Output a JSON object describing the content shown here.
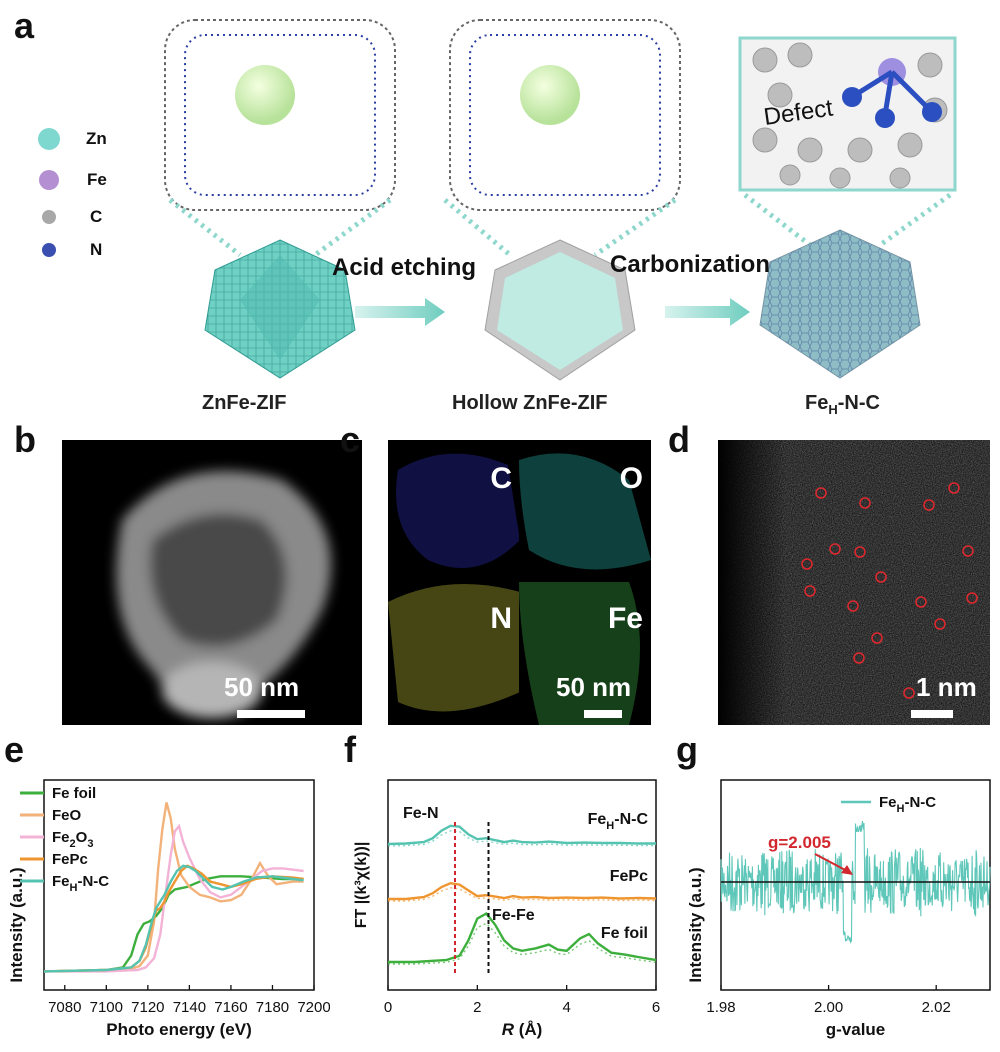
{
  "panel_labels": {
    "a": "a",
    "b": "b",
    "c": "c",
    "d": "d",
    "e": "e",
    "f": "f",
    "g": "g"
  },
  "legend": [
    {
      "label": "Zn",
      "color": "#7fd8cf"
    },
    {
      "label": "Fe",
      "color": "#b48fd1"
    },
    {
      "label": "C",
      "color": "#a8a8a8"
    },
    {
      "label": "N",
      "color": "#3a4fb0"
    }
  ],
  "scheme": {
    "step1": "Acid etching",
    "step2": "Carbonization",
    "defect": "Defect",
    "cap1": "ZnFe-ZIF",
    "cap2": "Hollow ZnFe-ZIF",
    "cap3_main": "Fe",
    "cap3_sub": "H",
    "cap3_tail": "-N-C"
  },
  "panel_b": {
    "scale": "50 nm"
  },
  "panel_c": {
    "scale": "50 nm",
    "maps": [
      {
        "label": "C",
        "color": "#2f2fbf"
      },
      {
        "label": "O",
        "color": "#27b7b0"
      },
      {
        "label": "N",
        "color": "#c8c83a"
      },
      {
        "label": "Fe",
        "color": "#3bb84a"
      }
    ]
  },
  "panel_d": {
    "scale": "1 nm"
  },
  "chart_data": [
    {
      "type": "line",
      "panel": "e",
      "xlabel": "Photo energy (eV)",
      "ylabel": "Intensity (a.u.)",
      "xlim": [
        7070,
        7200
      ],
      "xticks": [
        7080,
        7100,
        7120,
        7140,
        7160,
        7180,
        7200
      ],
      "series": [
        {
          "name": "Fe foil",
          "color": "#3daf3d",
          "x": [
            7070,
            7100,
            7108,
            7112,
            7115,
            7118,
            7121,
            7124,
            7127,
            7130,
            7133,
            7136,
            7139,
            7142,
            7148,
            7155,
            7165,
            7175,
            7185,
            7195
          ],
          "y": [
            0.02,
            0.03,
            0.05,
            0.14,
            0.3,
            0.38,
            0.4,
            0.44,
            0.5,
            0.6,
            0.64,
            0.65,
            0.66,
            0.68,
            0.72,
            0.74,
            0.74,
            0.73,
            0.72,
            0.72
          ]
        },
        {
          "name": "FeO",
          "color": "#f2b27a",
          "x": [
            7070,
            7100,
            7112,
            7116,
            7120,
            7123,
            7125,
            7127,
            7129,
            7131,
            7133,
            7136,
            7140,
            7145,
            7150,
            7155,
            7160,
            7165,
            7170,
            7174,
            7178,
            7182,
            7190,
            7195
          ],
          "y": [
            0.02,
            0.03,
            0.04,
            0.06,
            0.14,
            0.4,
            0.8,
            1.1,
            1.3,
            1.18,
            0.95,
            0.75,
            0.66,
            0.6,
            0.58,
            0.55,
            0.56,
            0.6,
            0.72,
            0.84,
            0.74,
            0.68,
            0.7,
            0.7
          ]
        },
        {
          "name": "Fe₂O₃",
          "color": "#f3b3d6",
          "x": [
            7070,
            7100,
            7115,
            7119,
            7123,
            7126,
            7128,
            7131,
            7133,
            7135,
            7137,
            7140,
            7145,
            7150,
            7155,
            7160,
            7165,
            7170,
            7175,
            7180,
            7185,
            7190,
            7195
          ],
          "y": [
            0.02,
            0.02,
            0.03,
            0.05,
            0.12,
            0.3,
            0.55,
            0.9,
            1.08,
            1.12,
            1.0,
            0.88,
            0.72,
            0.62,
            0.58,
            0.6,
            0.66,
            0.72,
            0.78,
            0.8,
            0.8,
            0.79,
            0.78
          ]
        },
        {
          "name": "FePc",
          "color": "#ef9530",
          "x": [
            7070,
            7100,
            7112,
            7116,
            7119,
            7122,
            7124,
            7126,
            7128,
            7130,
            7133,
            7136,
            7139,
            7142,
            7146,
            7150,
            7155,
            7160,
            7165,
            7172,
            7180,
            7190,
            7195
          ],
          "y": [
            0.02,
            0.03,
            0.05,
            0.1,
            0.2,
            0.38,
            0.48,
            0.5,
            0.55,
            0.62,
            0.7,
            0.78,
            0.82,
            0.8,
            0.76,
            0.7,
            0.68,
            0.66,
            0.68,
            0.72,
            0.74,
            0.73,
            0.72
          ]
        },
        {
          "name": "FeH-N-C",
          "color": "#54c3b0",
          "x": [
            7070,
            7100,
            7112,
            7116,
            7119,
            7122,
            7124,
            7126,
            7128,
            7131,
            7134,
            7137,
            7140,
            7143,
            7147,
            7151,
            7156,
            7160,
            7166,
            7172,
            7180,
            7190,
            7195
          ],
          "y": [
            0.02,
            0.03,
            0.05,
            0.1,
            0.22,
            0.4,
            0.5,
            0.55,
            0.6,
            0.7,
            0.78,
            0.82,
            0.81,
            0.78,
            0.72,
            0.66,
            0.64,
            0.66,
            0.7,
            0.73,
            0.74,
            0.72,
            0.71
          ]
        }
      ]
    },
    {
      "type": "line",
      "panel": "f",
      "xlabel": "R (Å)",
      "ylabel": "FT |(k³χ(k))|",
      "xlim": [
        0,
        6
      ],
      "xticks": [
        0,
        2,
        4,
        6
      ],
      "series": [
        {
          "name": "FeH-N-C",
          "color": "#54c3b0",
          "offset": 2,
          "x": [
            0,
            0.4,
            0.8,
            1.0,
            1.2,
            1.4,
            1.6,
            1.8,
            2.0,
            2.2,
            2.4,
            2.6,
            2.8,
            3.0,
            3.3,
            3.6,
            4.0,
            4.4,
            4.8,
            5.2,
            5.6,
            6.0
          ],
          "y": [
            0,
            0.01,
            0.04,
            0.12,
            0.28,
            0.38,
            0.36,
            0.2,
            0.1,
            0.12,
            0.08,
            0.04,
            0.07,
            0.04,
            0.03,
            0.05,
            0.02,
            0.03,
            0.02,
            0.02,
            0.01,
            0.01
          ]
        },
        {
          "name": "FePc",
          "color": "#ef9530",
          "offset": 1,
          "x": [
            0,
            0.4,
            0.8,
            1.0,
            1.2,
            1.4,
            1.6,
            1.8,
            2.0,
            2.2,
            2.4,
            2.6,
            2.8,
            3.0,
            3.3,
            3.6,
            4.0,
            4.4,
            4.8,
            5.2,
            5.6,
            6.0
          ],
          "y": [
            0,
            0.0,
            0.04,
            0.12,
            0.25,
            0.33,
            0.3,
            0.18,
            0.06,
            0.08,
            0.05,
            0.02,
            0.06,
            0.03,
            0.04,
            0.02,
            0.03,
            0.02,
            0.03,
            0.01,
            0.02,
            0.01
          ]
        },
        {
          "name": "Fe foil",
          "color": "#3daf3d",
          "offset": 0,
          "x": [
            0,
            0.6,
            1.0,
            1.3,
            1.6,
            1.8,
            2.0,
            2.2,
            2.4,
            2.6,
            2.8,
            3.0,
            3.3,
            3.6,
            3.8,
            4.0,
            4.3,
            4.5,
            4.7,
            5.0,
            5.3,
            5.6,
            6.0
          ],
          "y": [
            0.0,
            0.0,
            0.02,
            0.03,
            0.1,
            0.35,
            0.7,
            0.78,
            0.6,
            0.35,
            0.22,
            0.18,
            0.22,
            0.28,
            0.2,
            0.18,
            0.38,
            0.45,
            0.3,
            0.15,
            0.12,
            0.08,
            0.03
          ]
        }
      ],
      "annotations": [
        "Fe-N",
        "Fe-Fe"
      ],
      "vlines": [
        {
          "x": 1.5,
          "color": "#d2272f"
        },
        {
          "x": 2.25,
          "color": "#111111"
        }
      ]
    },
    {
      "type": "line",
      "panel": "g",
      "xlabel": "g-value",
      "ylabel": "Intensity (a.u.)",
      "xlim": [
        1.98,
        2.03
      ],
      "xticks": [
        1.98,
        2.0,
        2.02
      ],
      "series": [
        {
          "name": "FeH-N-C",
          "color": "#5fc7b9"
        }
      ],
      "annotation": "g=2.005"
    }
  ],
  "legend_f_labels": {
    "s1_main": "Fe",
    "s1_sub": "H",
    "s1_tail": "-N-C",
    "s2": "FePc",
    "s3": "Fe foil"
  },
  "legend_e_labels": {
    "feh_main": "Fe",
    "feh_sub": "H",
    "feh_tail": "-N-C",
    "fe2o3_main": "Fe",
    "fe2o3_sub": "2",
    "fe2o3_tail": "O",
    "fe2o3_sub2": "3"
  },
  "legend_g_labels": {
    "main": "Fe",
    "sub": "H",
    "tail": "-N-C"
  }
}
